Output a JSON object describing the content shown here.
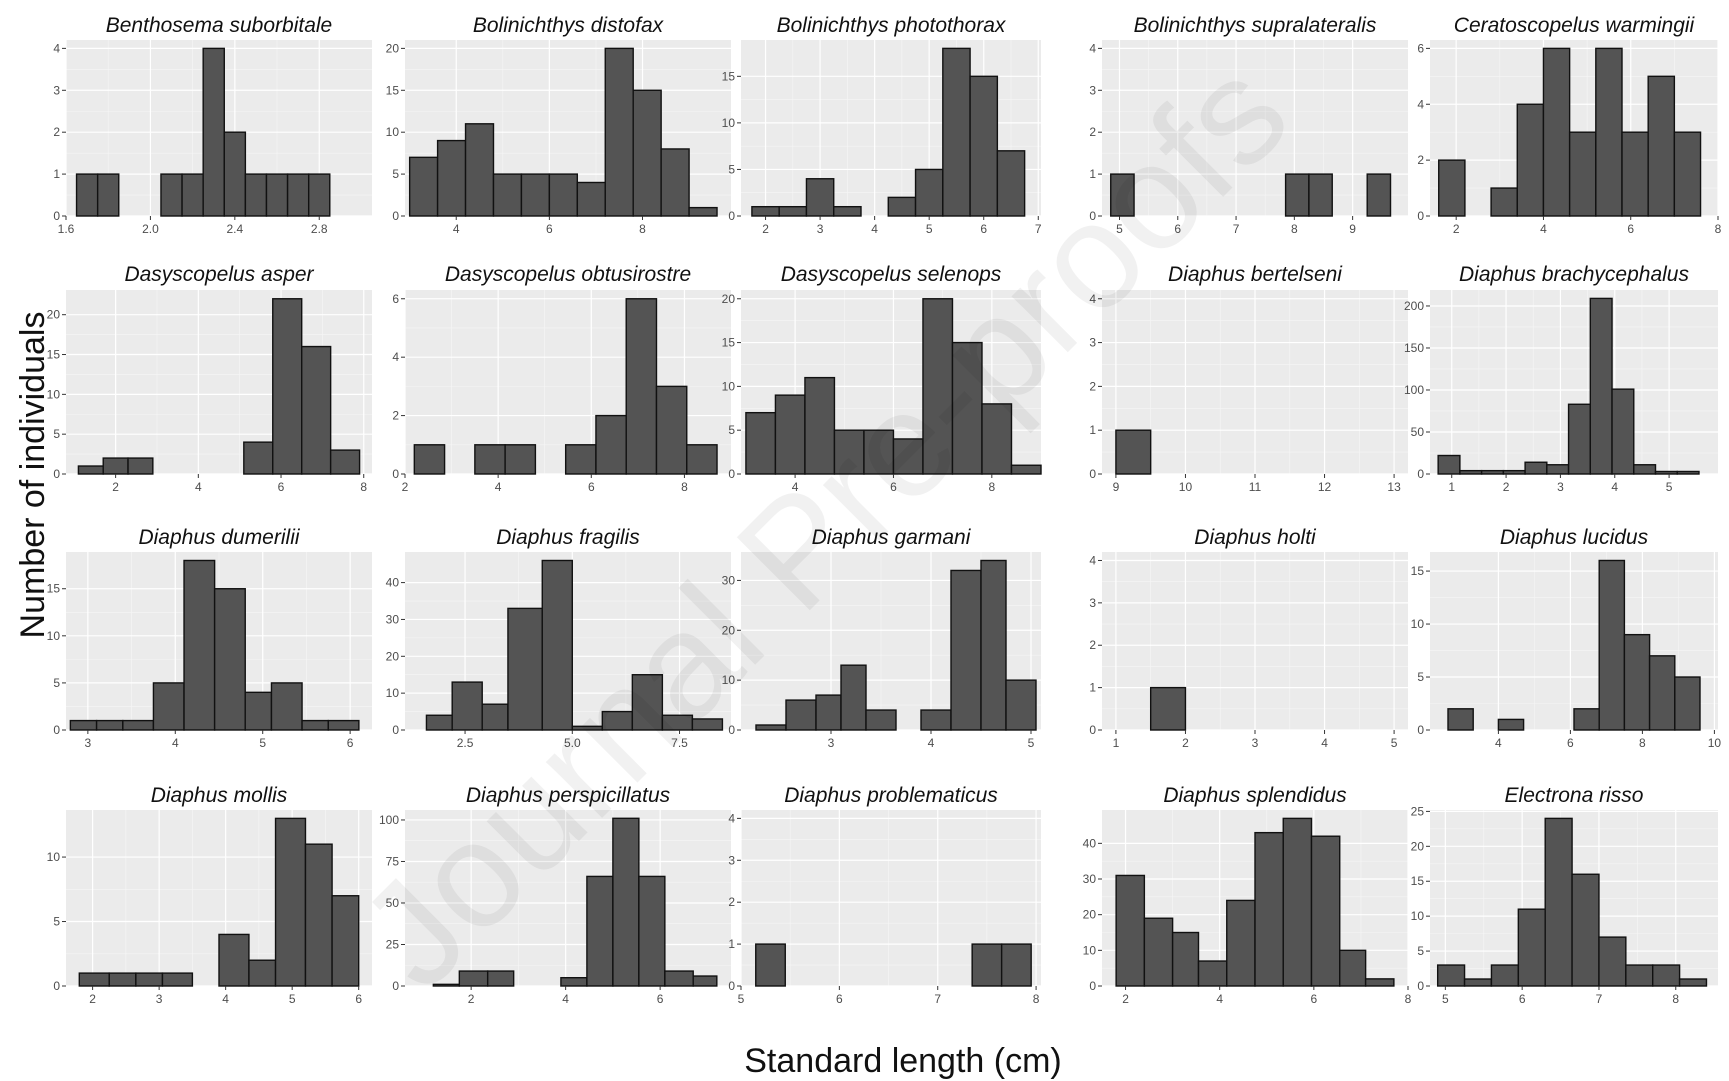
{
  "figure": {
    "xlabel": "Standard length (cm)",
    "ylabel": "Number of individuals",
    "watermark": "Journal Pre-proofs",
    "colors": {
      "bar_fill": "#545454",
      "bar_stroke": "#111111",
      "panel_bg": "#ebebeb",
      "grid": "#ffffff"
    }
  },
  "chart_data": [
    {
      "type": "bar",
      "title": "Benthosema suborbitale",
      "bins": [
        [
          1.65,
          1.75,
          1
        ],
        [
          1.75,
          1.85,
          1
        ],
        [
          1.85,
          1.95,
          0
        ],
        [
          1.95,
          2.05,
          0
        ],
        [
          2.05,
          2.15,
          1
        ],
        [
          2.15,
          2.25,
          1
        ],
        [
          2.25,
          2.35,
          4
        ],
        [
          2.35,
          2.45,
          2
        ],
        [
          2.45,
          2.55,
          1
        ],
        [
          2.55,
          2.65,
          1
        ],
        [
          2.65,
          2.75,
          1
        ],
        [
          2.75,
          2.85,
          1
        ]
      ],
      "xlim": [
        1.6,
        3.05
      ],
      "ylim": [
        0,
        4.2
      ],
      "xticks": [
        1.6,
        2.0,
        2.4,
        2.8
      ],
      "xtick_labels": [
        "1.6",
        "2.0",
        "2.4",
        "2.8"
      ],
      "yticks": [
        0,
        1,
        2,
        3,
        4
      ]
    },
    {
      "type": "bar",
      "title": "Bolinichthys distofax",
      "bins": [
        [
          3.0,
          3.6,
          7
        ],
        [
          3.6,
          4.2,
          9
        ],
        [
          4.2,
          4.8,
          11
        ],
        [
          4.8,
          5.4,
          5
        ],
        [
          5.4,
          6.0,
          5
        ],
        [
          6.0,
          6.6,
          5
        ],
        [
          6.6,
          7.2,
          4
        ],
        [
          7.2,
          7.8,
          20
        ],
        [
          7.8,
          8.4,
          15
        ],
        [
          8.4,
          9.0,
          8
        ],
        [
          9.0,
          9.6,
          1
        ]
      ],
      "xlim": [
        2.9,
        9.9
      ],
      "ylim": [
        0,
        21
      ],
      "xticks": [
        4,
        6,
        8
      ],
      "xtick_labels": [
        "4",
        "6",
        "8"
      ],
      "yticks": [
        0,
        5,
        10,
        15,
        20
      ]
    },
    {
      "type": "bar",
      "title": "Bolinichthys photothorax",
      "bins": [
        [
          1.75,
          2.25,
          1
        ],
        [
          2.25,
          2.75,
          1
        ],
        [
          2.75,
          3.25,
          4
        ],
        [
          3.25,
          3.75,
          1
        ],
        [
          4.25,
          4.75,
          2
        ],
        [
          4.75,
          5.25,
          5
        ],
        [
          5.25,
          5.75,
          18
        ],
        [
          5.75,
          6.25,
          15
        ],
        [
          6.25,
          6.75,
          7
        ]
      ],
      "xlim": [
        1.55,
        7.05
      ],
      "ylim": [
        0,
        18.9
      ],
      "xticks": [
        2,
        3,
        4,
        5,
        6,
        7
      ],
      "xtick_labels": [
        "2",
        "3",
        "4",
        "5",
        "6",
        "7"
      ],
      "yticks": [
        0,
        5,
        10,
        15
      ]
    },
    {
      "type": "bar",
      "title": "Bolinichthys supralateralis",
      "bins": [
        [
          4.85,
          5.25,
          1
        ],
        [
          7.85,
          8.25,
          1
        ],
        [
          8.25,
          8.65,
          1
        ],
        [
          9.25,
          9.65,
          1
        ]
      ],
      "xlim": [
        4.7,
        9.95
      ],
      "ylim": [
        0,
        4.2
      ],
      "xticks": [
        5,
        6,
        7,
        8,
        9
      ],
      "xtick_labels": [
        "5",
        "6",
        "7",
        "8",
        "9"
      ],
      "yticks": [
        0,
        1,
        2,
        3,
        4
      ]
    },
    {
      "type": "bar",
      "title": "Ceratoscopelus warmingii",
      "bins": [
        [
          1.6,
          2.2,
          2
        ],
        [
          2.8,
          3.4,
          1
        ],
        [
          3.4,
          4.0,
          4
        ],
        [
          4.0,
          4.6,
          6
        ],
        [
          4.6,
          5.2,
          3
        ],
        [
          5.2,
          5.8,
          6
        ],
        [
          5.8,
          6.4,
          3
        ],
        [
          6.4,
          7.0,
          5
        ],
        [
          7.0,
          7.6,
          3
        ]
      ],
      "xlim": [
        1.4,
        8.0
      ],
      "ylim": [
        0,
        6.3
      ],
      "xticks": [
        2,
        4,
        6,
        8
      ],
      "xtick_labels": [
        "2",
        "4",
        "6",
        "8"
      ],
      "yticks": [
        0,
        2,
        4,
        6
      ]
    },
    {
      "type": "bar",
      "title": "Dasyscopelus asper",
      "bins": [
        [
          1.1,
          1.7,
          1
        ],
        [
          1.7,
          2.3,
          2
        ],
        [
          2.3,
          2.9,
          2
        ],
        [
          5.1,
          5.8,
          4
        ],
        [
          5.8,
          6.5,
          22
        ],
        [
          6.5,
          7.2,
          16
        ],
        [
          7.2,
          7.9,
          3
        ]
      ],
      "xlim": [
        0.8,
        8.2
      ],
      "ylim": [
        0,
        23.1
      ],
      "xticks": [
        2,
        4,
        6,
        8
      ],
      "xtick_labels": [
        "2",
        "4",
        "6",
        "8"
      ],
      "yticks": [
        0,
        5,
        10,
        15,
        20
      ]
    },
    {
      "type": "bar",
      "title": "Dasyscopelus obtusirostre",
      "bins": [
        [
          2.2,
          2.85,
          1
        ],
        [
          3.5,
          4.15,
          1
        ],
        [
          4.15,
          4.8,
          1
        ],
        [
          5.45,
          6.1,
          1
        ],
        [
          6.1,
          6.75,
          2
        ],
        [
          6.75,
          7.4,
          6
        ],
        [
          7.4,
          8.05,
          3
        ],
        [
          8.05,
          8.7,
          1
        ]
      ],
      "xlim": [
        2.0,
        9.0
      ],
      "ylim": [
        0,
        6.3
      ],
      "xticks": [
        2,
        4,
        6,
        8
      ],
      "xtick_labels": [
        "2",
        "4",
        "6",
        "8"
      ],
      "yticks": [
        0,
        2,
        4,
        6
      ]
    },
    {
      "type": "bar",
      "title": "Dasyscopelus selenops",
      "bins": [
        [
          3.0,
          3.6,
          7
        ],
        [
          3.6,
          4.2,
          9
        ],
        [
          4.2,
          4.8,
          11
        ],
        [
          4.8,
          5.4,
          5
        ],
        [
          5.4,
          6.0,
          5
        ],
        [
          6.0,
          6.6,
          4
        ],
        [
          6.6,
          7.2,
          20
        ],
        [
          7.2,
          7.8,
          15
        ],
        [
          7.8,
          8.4,
          8
        ],
        [
          8.4,
          9.0,
          1
        ]
      ],
      "xlim": [
        2.9,
        9.0
      ],
      "ylim": [
        0,
        21
      ],
      "xticks": [
        4,
        6,
        8
      ],
      "xtick_labels": [
        "4",
        "6",
        "8"
      ],
      "yticks": [
        0,
        5,
        10,
        15,
        20
      ]
    },
    {
      "type": "bar",
      "title": "Diaphus bertelseni",
      "bins": [
        [
          9.0,
          9.5,
          1
        ]
      ],
      "xlim": [
        8.8,
        13.2
      ],
      "ylim": [
        0,
        4.2
      ],
      "xticks": [
        9,
        10,
        11,
        12,
        13
      ],
      "xtick_labels": [
        "9",
        "10",
        "11",
        "12",
        "13"
      ],
      "yticks": [
        0,
        1,
        2,
        3,
        4
      ]
    },
    {
      "type": "bar",
      "title": "Diaphus brachycephalus",
      "bins": [
        [
          0.75,
          1.15,
          22
        ],
        [
          1.15,
          1.55,
          4
        ],
        [
          1.55,
          1.95,
          4
        ],
        [
          1.95,
          2.35,
          4
        ],
        [
          2.35,
          2.75,
          14
        ],
        [
          2.75,
          3.15,
          11
        ],
        [
          3.15,
          3.55,
          83
        ],
        [
          3.55,
          3.95,
          209
        ],
        [
          3.95,
          4.35,
          101
        ],
        [
          4.35,
          4.75,
          11
        ],
        [
          4.75,
          5.15,
          3
        ],
        [
          5.15,
          5.55,
          3
        ]
      ],
      "xlim": [
        0.6,
        5.9
      ],
      "ylim": [
        0,
        219
      ],
      "xticks": [
        1,
        2,
        3,
        4,
        5
      ],
      "xtick_labels": [
        "1",
        "2",
        "3",
        "4",
        "5"
      ],
      "yticks": [
        0,
        50,
        100,
        150,
        200
      ]
    },
    {
      "type": "bar",
      "title": "Diaphus dumerilii",
      "bins": [
        [
          2.8,
          3.1,
          1
        ],
        [
          3.1,
          3.4,
          1
        ],
        [
          3.4,
          3.75,
          1
        ],
        [
          3.75,
          4.1,
          5
        ],
        [
          4.1,
          4.45,
          18
        ],
        [
          4.45,
          4.8,
          15
        ],
        [
          4.8,
          5.1,
          4
        ],
        [
          5.1,
          5.45,
          5
        ],
        [
          5.45,
          5.75,
          1
        ],
        [
          5.75,
          6.1,
          1
        ]
      ],
      "xlim": [
        2.75,
        6.25
      ],
      "ylim": [
        0,
        18.9
      ],
      "xticks": [
        3,
        4,
        5,
        6
      ],
      "xtick_labels": [
        "3",
        "4",
        "5",
        "6"
      ],
      "yticks": [
        0,
        5,
        10,
        15
      ]
    },
    {
      "type": "bar",
      "title": "Diaphus fragilis",
      "bins": [
        [
          1.6,
          2.2,
          4
        ],
        [
          2.2,
          2.9,
          13
        ],
        [
          2.9,
          3.5,
          7
        ],
        [
          3.5,
          4.3,
          33
        ],
        [
          4.3,
          5.0,
          46
        ],
        [
          5.0,
          5.7,
          1
        ],
        [
          5.7,
          6.4,
          5
        ],
        [
          6.4,
          7.1,
          15
        ],
        [
          7.1,
          7.8,
          4
        ],
        [
          7.8,
          8.5,
          3
        ]
      ],
      "xlim": [
        1.1,
        8.7
      ],
      "ylim": [
        0,
        48.3
      ],
      "xticks": [
        2.5,
        5.0,
        7.5
      ],
      "xtick_labels": [
        "2.5",
        "5.0",
        "7.5"
      ],
      "yticks": [
        0,
        10,
        20,
        30,
        40
      ]
    },
    {
      "type": "bar",
      "title": "Diaphus garmani",
      "bins": [
        [
          2.25,
          2.55,
          1
        ],
        [
          2.55,
          2.85,
          6
        ],
        [
          2.85,
          3.1,
          7
        ],
        [
          3.1,
          3.35,
          13
        ],
        [
          3.35,
          3.65,
          4
        ],
        [
          3.9,
          4.2,
          4
        ],
        [
          4.2,
          4.5,
          32
        ],
        [
          4.5,
          4.75,
          34
        ],
        [
          4.75,
          5.05,
          10
        ]
      ],
      "xlim": [
        2.1,
        5.1
      ],
      "ylim": [
        0,
        35.7
      ],
      "xticks": [
        3,
        4,
        5
      ],
      "xtick_labels": [
        "3",
        "4",
        "5"
      ],
      "yticks": [
        0,
        10,
        20,
        30
      ]
    },
    {
      "type": "bar",
      "title": "Diaphus holti",
      "bins": [
        [
          1.5,
          2.0,
          1
        ]
      ],
      "xlim": [
        0.8,
        5.2
      ],
      "ylim": [
        0,
        4.2
      ],
      "xticks": [
        1,
        2,
        3,
        4,
        5
      ],
      "xtick_labels": [
        "1",
        "2",
        "3",
        "4",
        "5"
      ],
      "yticks": [
        0,
        1,
        2,
        3,
        4
      ]
    },
    {
      "type": "bar",
      "title": "Diaphus lucidus",
      "bins": [
        [
          2.6,
          3.3,
          2
        ],
        [
          4.0,
          4.7,
          1
        ],
        [
          6.1,
          6.8,
          2
        ],
        [
          6.8,
          7.5,
          16
        ],
        [
          7.5,
          8.2,
          9
        ],
        [
          8.2,
          8.9,
          7
        ],
        [
          8.9,
          9.6,
          5
        ]
      ],
      "xlim": [
        2.1,
        10.1
      ],
      "ylim": [
        0,
        16.8
      ],
      "xticks": [
        4,
        6,
        8,
        10
      ],
      "xtick_labels": [
        "4",
        "6",
        "8",
        "10"
      ],
      "yticks": [
        0,
        5,
        10,
        15
      ]
    },
    {
      "type": "bar",
      "title": "Diaphus mollis",
      "bins": [
        [
          1.8,
          2.25,
          1
        ],
        [
          2.25,
          2.65,
          1
        ],
        [
          2.65,
          3.05,
          1
        ],
        [
          3.05,
          3.5,
          1
        ],
        [
          3.9,
          4.35,
          4
        ],
        [
          4.35,
          4.75,
          2
        ],
        [
          4.75,
          5.2,
          13
        ],
        [
          5.2,
          5.6,
          11
        ],
        [
          5.6,
          6.0,
          7
        ]
      ],
      "xlim": [
        1.6,
        6.2
      ],
      "ylim": [
        0,
        13.65
      ],
      "xticks": [
        2,
        3,
        4,
        5,
        6
      ],
      "xtick_labels": [
        "2",
        "3",
        "4",
        "5",
        "6"
      ],
      "yticks": [
        0,
        5,
        10
      ]
    },
    {
      "type": "bar",
      "title": "Diaphus perspicillatus",
      "bins": [
        [
          1.2,
          1.75,
          1
        ],
        [
          1.75,
          2.35,
          9
        ],
        [
          2.35,
          2.9,
          9
        ],
        [
          3.9,
          4.45,
          5
        ],
        [
          4.45,
          5.0,
          66
        ],
        [
          5.0,
          5.55,
          101
        ],
        [
          5.55,
          6.1,
          66
        ],
        [
          6.1,
          6.7,
          9
        ],
        [
          6.7,
          7.2,
          6
        ]
      ],
      "xlim": [
        0.6,
        7.5
      ],
      "ylim": [
        0,
        106
      ],
      "xticks": [
        2,
        4,
        6
      ],
      "xtick_labels": [
        "2",
        "4",
        "6"
      ],
      "yticks": [
        0,
        25,
        50,
        75,
        100
      ]
    },
    {
      "type": "bar",
      "title": "Diaphus problematicus",
      "bins": [
        [
          5.15,
          5.45,
          1
        ],
        [
          7.35,
          7.65,
          1
        ],
        [
          7.65,
          7.95,
          1
        ]
      ],
      "xlim": [
        5.0,
        8.05
      ],
      "ylim": [
        0,
        4.2
      ],
      "xticks": [
        5,
        6,
        7,
        8
      ],
      "xtick_labels": [
        "5",
        "6",
        "7",
        "8"
      ],
      "yticks": [
        0,
        1,
        2,
        3,
        4
      ]
    },
    {
      "type": "bar",
      "title": "Diaphus splendidus",
      "bins": [
        [
          1.8,
          2.4,
          31
        ],
        [
          2.4,
          3.0,
          19
        ],
        [
          3.0,
          3.55,
          15
        ],
        [
          3.55,
          4.15,
          7
        ],
        [
          4.15,
          4.75,
          24
        ],
        [
          4.75,
          5.35,
          43
        ],
        [
          5.35,
          5.95,
          47
        ],
        [
          5.95,
          6.55,
          42
        ],
        [
          6.55,
          7.1,
          10
        ],
        [
          7.1,
          7.7,
          2
        ]
      ],
      "xlim": [
        1.5,
        8.0
      ],
      "ylim": [
        0,
        49.35
      ],
      "xticks": [
        2,
        4,
        6,
        8
      ],
      "xtick_labels": [
        "2",
        "4",
        "6",
        "8"
      ],
      "yticks": [
        0,
        10,
        20,
        30,
        40
      ]
    },
    {
      "type": "bar",
      "title": "Electrona risso",
      "bins": [
        [
          4.9,
          5.25,
          3
        ],
        [
          5.25,
          5.6,
          1
        ],
        [
          5.6,
          5.95,
          3
        ],
        [
          5.95,
          6.3,
          11
        ],
        [
          6.3,
          6.65,
          24
        ],
        [
          6.65,
          7.0,
          16
        ],
        [
          7.0,
          7.35,
          7
        ],
        [
          7.35,
          7.7,
          3
        ],
        [
          7.7,
          8.05,
          3
        ],
        [
          8.05,
          8.4,
          1
        ]
      ],
      "xlim": [
        4.8,
        8.55
      ],
      "ylim": [
        0,
        25.2
      ],
      "xticks": [
        5,
        6,
        7,
        8
      ],
      "xtick_labels": [
        "5",
        "6",
        "7",
        "8"
      ],
      "yticks": [
        0,
        5,
        10,
        15,
        20,
        25
      ]
    }
  ]
}
